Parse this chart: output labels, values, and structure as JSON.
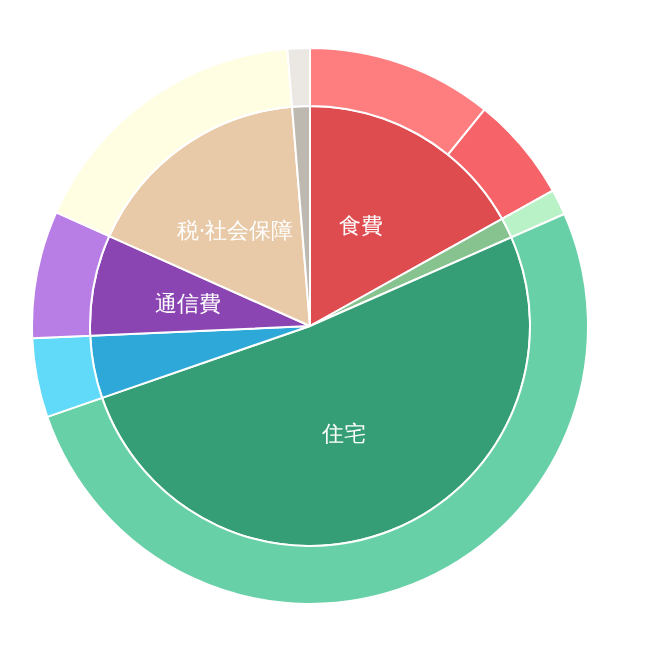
{
  "chart_data": [
    {
      "type": "pie",
      "categories": [
        "食費",
        null,
        "住宅",
        null,
        "通信費",
        "税·社会保障",
        null
      ],
      "values": [
        16.9,
        1.5,
        51.3,
        4.6,
        7.4,
        17.0,
        1.3
      ],
      "colors": [
        "#de4c50",
        "#86c38f",
        "#359e76",
        "#2ea8d8",
        "#8b45b3",
        "#e8caa8",
        "#bdb8b0"
      ]
    },
    {
      "type": "donut",
      "categories": [
        null,
        null,
        null,
        null,
        null,
        null,
        null,
        null
      ],
      "values": [
        10.8,
        6.1,
        1.5,
        51.3,
        4.6,
        7.4,
        17.0,
        1.3
      ],
      "colors": [
        "#fe7e80",
        "#f66469",
        "#b9f2c7",
        "#68d0a7",
        "#61daf9",
        "#b97ee6",
        "#fffde2",
        "#ebe8e4"
      ]
    }
  ]
}
